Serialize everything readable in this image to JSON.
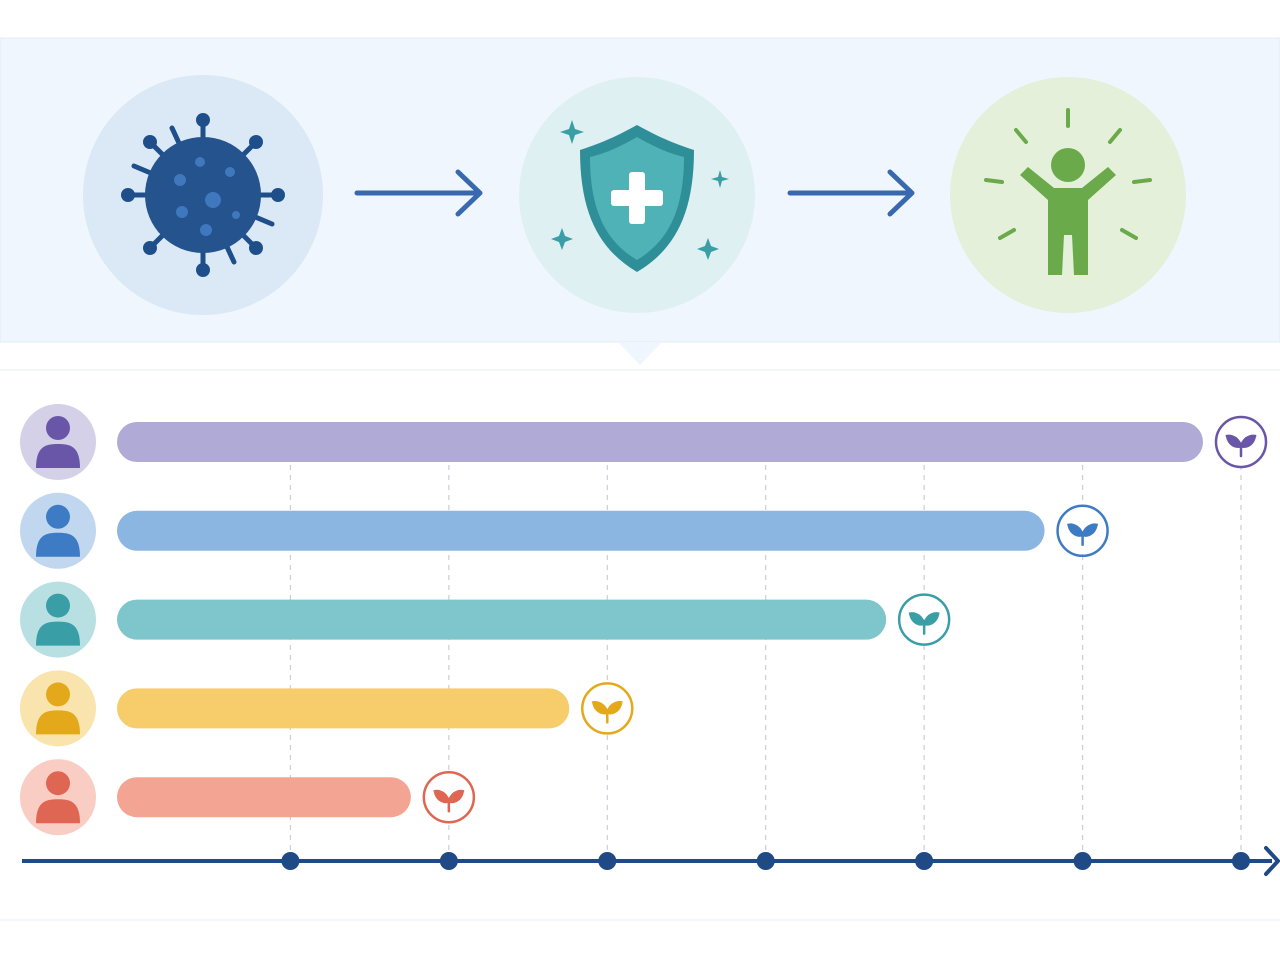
{
  "chart_data": {
    "type": "bar",
    "orientation": "horizontal",
    "values": [
      7,
      6,
      5,
      3,
      2
    ],
    "colors": [
      "#b0aad6",
      "#8cb6e2",
      "#7ec6cc",
      "#f6cd6a",
      "#f4a493"
    ],
    "accent_colors": [
      "#6a56a8",
      "#3d7cc4",
      "#3a9ea6",
      "#e3a91a",
      "#df6652"
    ],
    "xlim": [
      0,
      7
    ],
    "xticks": [
      1,
      2,
      3,
      4,
      5,
      6,
      7
    ],
    "grid": true
  }
}
